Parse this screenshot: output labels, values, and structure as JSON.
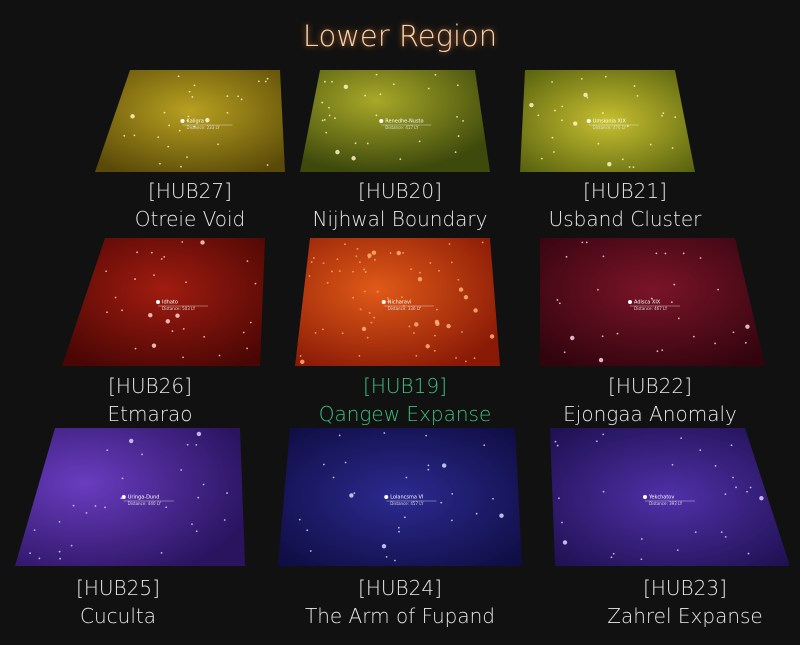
{
  "header": {
    "title": "Lower Region"
  },
  "tiles": [
    {
      "hub": "[HUB27]",
      "name": "Otreie Void",
      "star": "Kaligra II",
      "distance": "Distance: 233 LY"
    },
    {
      "hub": "[HUB20]",
      "name": "Nijhwal Boundary",
      "star": "Renedhe-Nusto",
      "distance": "Distance: 417 LY"
    },
    {
      "hub": "[HUB21]",
      "name": "Usband Cluster",
      "star": "Umsionia XIX",
      "distance": "Distance: 476 LY"
    },
    {
      "hub": "[HUB26]",
      "name": "Etmarao",
      "star": "Idhato",
      "distance": "Distance: 503 LY"
    },
    {
      "hub": "[HUB19]",
      "name": "Qangew Expanse",
      "star": "Nicharavi",
      "distance": "Distance: 336 LY"
    },
    {
      "hub": "[HUB22]",
      "name": "Ejongaa Anomaly",
      "star": "Adisca XIX",
      "distance": "Distance: 467 LY"
    },
    {
      "hub": "[HUB25]",
      "name": "Cuculta",
      "star": "Uringa-Dund",
      "distance": "Distance: 440 LY"
    },
    {
      "hub": "[HUB24]",
      "name": "The Arm of Fupand",
      "star": "Lolancsma VI",
      "distance": "Distance: 457 LY"
    },
    {
      "hub": "[HUB23]",
      "name": "Zahrel Expanse",
      "star": "Yekchatov",
      "distance": "Distance: 393 LY"
    }
  ]
}
